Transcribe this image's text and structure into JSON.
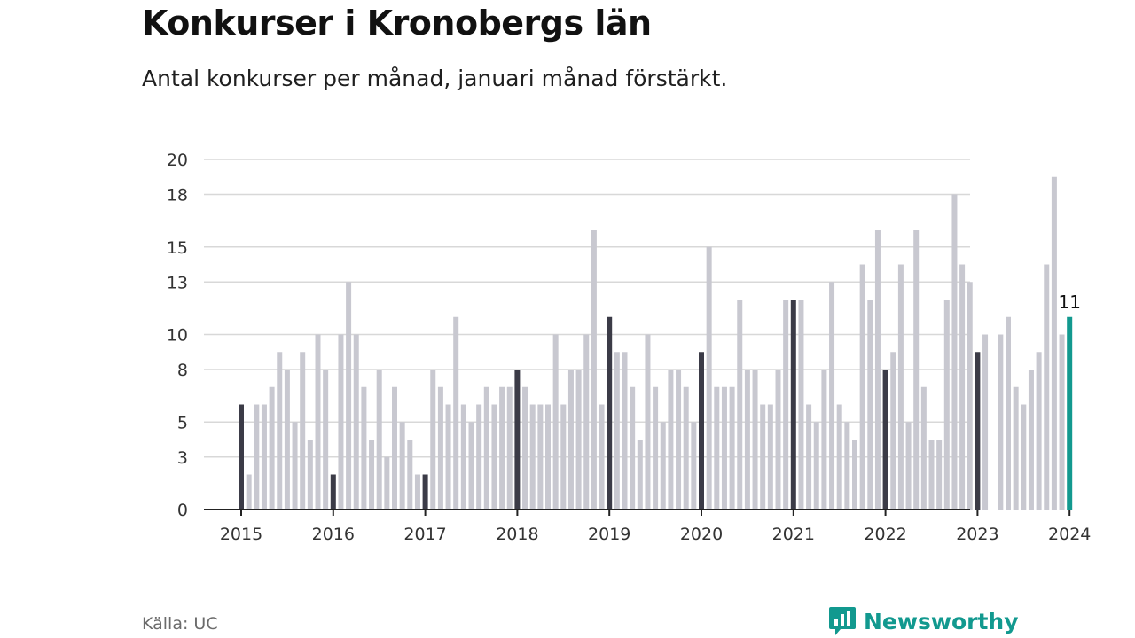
{
  "header": {
    "title": "Konkurser i Kronobergs län",
    "subtitle": "Antal konkurser per månad, januari månad förstärkt."
  },
  "footer": {
    "source": "Källa: UC",
    "brand": "Newsworthy"
  },
  "colors": {
    "regular_bar": "#c8c8d0",
    "january_bar": "#3b3b47",
    "latest_bar": "#12998f",
    "grid": "#d8d8d8",
    "axis": "#222222",
    "brand": "#12998f"
  },
  "chart_data": {
    "type": "bar",
    "start": "2015-01",
    "ylim": [
      0,
      20
    ],
    "y_ticks": [
      0,
      3,
      5,
      8,
      10,
      13,
      15,
      18,
      20
    ],
    "y_tick_labels": [
      "0",
      "3",
      "5",
      "8",
      "10",
      "13",
      "15",
      "18",
      "20"
    ],
    "x_tick_labels": [
      "2015",
      "2016",
      "2017",
      "2018",
      "2019",
      "2020",
      "2021",
      "2022",
      "2023",
      "2024"
    ],
    "highlight": "januari",
    "last_value_label": "11",
    "values": [
      6,
      2,
      6,
      6,
      7,
      9,
      8,
      5,
      9,
      4,
      10,
      8,
      2,
      10,
      13,
      10,
      7,
      4,
      8,
      3,
      7,
      5,
      4,
      2,
      2,
      8,
      7,
      6,
      11,
      6,
      5,
      6,
      7,
      6,
      7,
      7,
      8,
      7,
      6,
      6,
      6,
      10,
      6,
      8,
      8,
      10,
      16,
      6,
      11,
      9,
      9,
      7,
      4,
      10,
      7,
      5,
      8,
      8,
      7,
      5,
      9,
      15,
      7,
      7,
      7,
      12,
      8,
      8,
      6,
      6,
      8,
      12,
      12,
      12,
      6,
      5,
      8,
      13,
      6,
      5,
      4,
      14,
      12,
      16,
      8,
      9,
      14,
      5,
      16,
      7,
      4,
      4,
      12,
      18,
      14,
      13,
      9,
      10,
      0,
      10,
      11,
      7,
      6,
      8,
      9,
      14,
      19,
      10,
      11
    ]
  }
}
